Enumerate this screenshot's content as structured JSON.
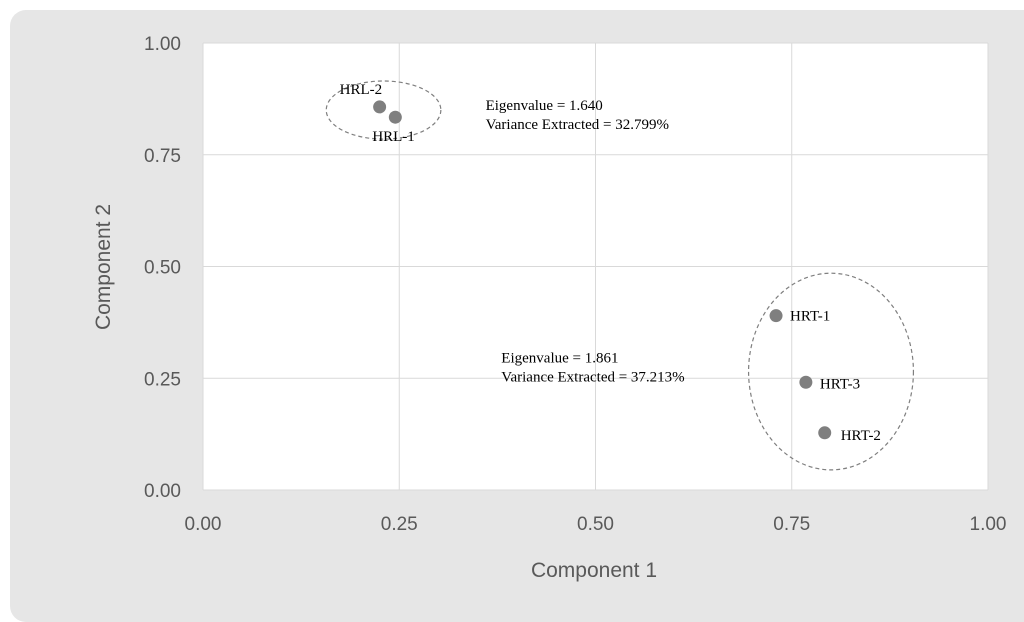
{
  "chart_data": {
    "type": "scatter",
    "xlabel": "Component 1",
    "ylabel": "Component 2",
    "xlim": [
      0,
      1
    ],
    "ylim": [
      0,
      1
    ],
    "x_ticks": [
      "0.00",
      "0.25",
      "0.50",
      "0.75",
      "1.00"
    ],
    "y_ticks": [
      "0.00",
      "0.25",
      "0.50",
      "0.75",
      "1.00"
    ],
    "grid": true,
    "points": [
      {
        "label": "HRL-2",
        "x": 0.225,
        "y": 0.857
      },
      {
        "label": "HRL-1",
        "x": 0.245,
        "y": 0.834
      },
      {
        "label": "HRT-1",
        "x": 0.73,
        "y": 0.39
      },
      {
        "label": "HRT-3",
        "x": 0.768,
        "y": 0.241
      },
      {
        "label": "HRT-2",
        "x": 0.792,
        "y": 0.128
      }
    ],
    "clusters": [
      {
        "members": [
          "HRL-2",
          "HRL-1"
        ],
        "center": [
          0.23,
          0.85
        ],
        "rx": 0.073,
        "ry": 0.13
      },
      {
        "members": [
          "HRT-1",
          "HRT-3",
          "HRT-2"
        ],
        "center": [
          0.8,
          0.265
        ],
        "rx": 0.105,
        "ry": 0.44
      }
    ],
    "annotations": [
      {
        "lines": [
          "Eigenvalue = 1.640",
          "Variance Extracted = 32.799%"
        ],
        "x": 0.36,
        "y": 0.85
      },
      {
        "lines": [
          "Eigenvalue = 1.861",
          "Variance Extracted = 37.213%"
        ],
        "x": 0.38,
        "y": 0.285
      }
    ],
    "colors": {
      "point": "#7f7f7f",
      "grid": "#d9d9d9",
      "plot_bg": "#ffffff",
      "card_bg": "#e6e6e6"
    }
  }
}
